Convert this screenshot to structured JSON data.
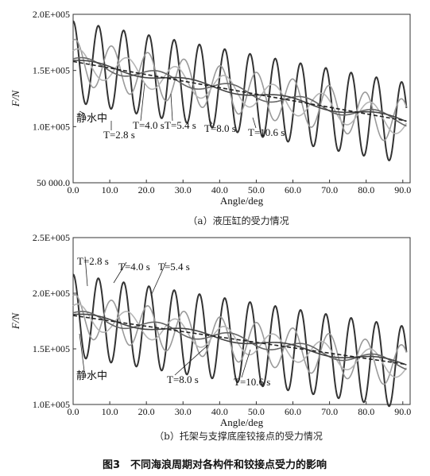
{
  "figure_caption": "图3　不同海浪周期对各构件和铰接点受力的影响",
  "chart_data": [
    {
      "type": "line",
      "caption": "（a）液压缸的受力情况",
      "xlabel": "Angle/deg",
      "ylabel": "F/N",
      "xlim": [
        0,
        92
      ],
      "ylim": [
        50000,
        200000
      ],
      "x_ticks": [
        "0.0",
        "10.0",
        "20.0",
        "30.0",
        "40.0",
        "50.0",
        "60.0",
        "70.0",
        "80.0",
        "90.0"
      ],
      "y_ticks": [
        "50 000.0",
        "1.0E+005",
        "1.5E+005",
        "2.0E+005"
      ],
      "annotations": [
        {
          "text": "静水中",
          "series": "静水中"
        },
        {
          "text": "T=2.8 s",
          "series": "T=2.8 s"
        },
        {
          "text": "T=4.0 s",
          "series": "T=4.0 s"
        },
        {
          "text": "T=5.4 s",
          "series": "T=5.4 s"
        },
        {
          "text": "T=8.0 s",
          "series": "T=8.0 s"
        },
        {
          "text": "T=10.6 s",
          "series": "T=10.6 s"
        }
      ],
      "series": [
        {
          "name": "静水中",
          "color": "#222222",
          "start": 158000,
          "end": 105000,
          "amplitude": 0,
          "period_deg": 0,
          "phase": 0
        },
        {
          "name": "T=2.8 s",
          "color": "#333333",
          "start": 158000,
          "end": 103000,
          "amplitude": 36000,
          "period_deg": 6.9,
          "phase": 1.57
        },
        {
          "name": "T=4.0 s",
          "color": "#9a9a9a",
          "start": 158000,
          "end": 104000,
          "amplitude": 20000,
          "period_deg": 9.9,
          "phase": 1.2
        },
        {
          "name": "T=5.4 s",
          "color": "#b5b5b5",
          "start": 158000,
          "end": 104000,
          "amplitude": 12000,
          "period_deg": 13.3,
          "phase": 0.9
        },
        {
          "name": "T=8.0 s",
          "color": "#666666",
          "start": 158000,
          "end": 105000,
          "amplitude": 5000,
          "period_deg": 19.8,
          "phase": 0.5
        },
        {
          "name": "T=10.6 s",
          "color": "#444444",
          "start": 158000,
          "end": 105000,
          "amplitude": 3000,
          "period_deg": 26.2,
          "phase": 0.3
        }
      ]
    },
    {
      "type": "line",
      "caption": "（b）托架与支撑底座铰接点的受力情况",
      "xlabel": "Angle/deg",
      "ylabel": "F/N",
      "xlim": [
        0,
        92
      ],
      "ylim": [
        100000,
        250000
      ],
      "x_ticks": [
        "0.0",
        "10.0",
        "20.0",
        "30.0",
        "40.0",
        "50.0",
        "60.0",
        "70.0",
        "80.0",
        "90.0"
      ],
      "y_ticks": [
        "1.0E+005",
        "1.5E+005",
        "2.0E+005",
        "2.5E+005"
      ],
      "annotations": [
        {
          "text": "T=2.8 s",
          "series": "T=2.8 s"
        },
        {
          "text": "T=4.0 s",
          "series": "T=4.0 s"
        },
        {
          "text": "T=5.4 s",
          "series": "T=5.4 s"
        },
        {
          "text": "静水中",
          "series": "静水中"
        },
        {
          "text": "T=8.0 s",
          "series": "T=8.0 s"
        },
        {
          "text": "T=10.6 s",
          "series": "T=10.6 s"
        }
      ],
      "series": [
        {
          "name": "静水中",
          "color": "#222222",
          "start": 180000,
          "end": 136000,
          "amplitude": 0,
          "period_deg": 0,
          "phase": 0
        },
        {
          "name": "T=2.8 s",
          "color": "#333333",
          "start": 180000,
          "end": 133000,
          "amplitude": 37000,
          "period_deg": 6.9,
          "phase": 1.57
        },
        {
          "name": "T=4.0 s",
          "color": "#9a9a9a",
          "start": 180000,
          "end": 134000,
          "amplitude": 19000,
          "period_deg": 9.9,
          "phase": 1.2
        },
        {
          "name": "T=5.4 s",
          "color": "#b5b5b5",
          "start": 180000,
          "end": 134000,
          "amplitude": 11000,
          "period_deg": 13.3,
          "phase": 0.9
        },
        {
          "name": "T=8.0 s",
          "color": "#666666",
          "start": 180000,
          "end": 136000,
          "amplitude": 5000,
          "period_deg": 19.8,
          "phase": 0.5
        },
        {
          "name": "T=10.6 s",
          "color": "#444444",
          "start": 180000,
          "end": 136000,
          "amplitude": 3000,
          "period_deg": 26.2,
          "phase": 0.3
        }
      ]
    }
  ]
}
